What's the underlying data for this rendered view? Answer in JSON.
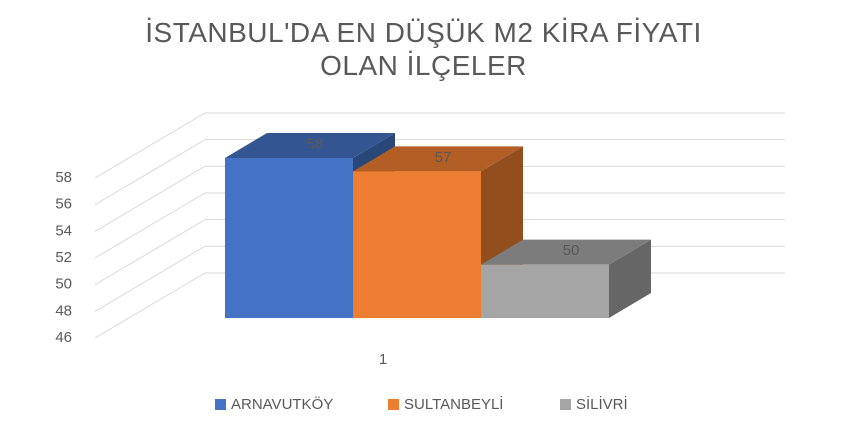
{
  "chart_data": {
    "type": "bar3d",
    "title": "İSTANBUL'DA EN DÜŞÜK M2 KİRA FİYATI OLAN İLÇELER",
    "categories": [
      "1"
    ],
    "series": [
      {
        "name": "ARNAVUTKÖY",
        "color": "#4472c4",
        "values": [
          58
        ]
      },
      {
        "name": "SULTANBEYLİ",
        "color": "#ed7d31",
        "values": [
          57
        ]
      },
      {
        "name": "SİLİVRİ",
        "color": "#a5a5a5",
        "values": [
          50
        ]
      }
    ],
    "ylim": [
      46,
      58
    ],
    "yticks": [
      46,
      48,
      50,
      52,
      54,
      56,
      58
    ],
    "grid": true,
    "legend": "bottom"
  }
}
